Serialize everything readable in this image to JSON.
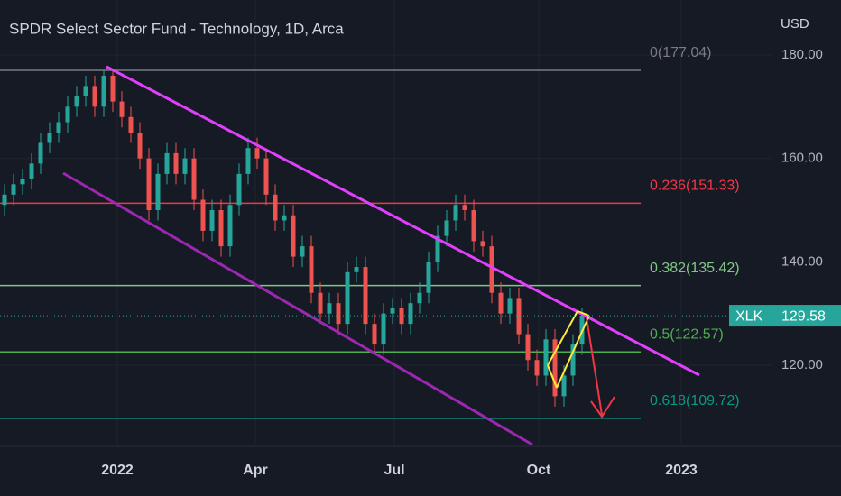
{
  "chart_data": {
    "type": "candlestick",
    "title": "SPDR Select Sector Fund - Technology, 1D, Arca",
    "currency": "USD",
    "symbol": "XLK",
    "last_price": 129.58,
    "up_color": "#26a69a",
    "down_color": "#ef5350",
    "open": [
      151,
      153,
      155,
      156,
      159,
      163,
      165,
      167,
      170,
      172,
      174,
      170,
      176,
      171,
      168,
      165,
      160,
      150,
      157,
      161,
      157,
      160,
      152,
      146,
      150,
      143,
      151,
      157,
      162,
      160,
      153,
      148,
      149,
      141,
      143,
      134,
      130,
      132,
      128,
      138,
      139,
      128,
      124,
      130,
      131,
      128,
      132,
      134,
      140,
      145,
      148,
      151,
      150,
      144,
      143,
      134,
      130,
      133,
      126,
      121,
      118,
      125,
      114,
      118,
      124
    ],
    "high": [
      155,
      157,
      158,
      161,
      165,
      167,
      169,
      172,
      174,
      176,
      176,
      177,
      177,
      173,
      170,
      167,
      162,
      159,
      163,
      163,
      162,
      162,
      154,
      152,
      152,
      153,
      159,
      164,
      164,
      162,
      155,
      151,
      151,
      145,
      145,
      136,
      134,
      134,
      140,
      141,
      141,
      130,
      132,
      133,
      133,
      134,
      136,
      142,
      147,
      150,
      153,
      153,
      152,
      146,
      145,
      136,
      135,
      135,
      128,
      123,
      127,
      127,
      120,
      126,
      131
    ],
    "low": [
      149,
      151,
      153,
      154,
      157,
      161,
      163,
      165,
      168,
      170,
      168,
      168,
      169,
      166,
      163,
      158,
      148,
      148,
      155,
      155,
      155,
      150,
      144,
      144,
      141,
      141,
      149,
      155,
      158,
      151,
      146,
      146,
      139,
      139,
      132,
      128,
      128,
      126,
      126,
      136,
      126,
      122,
      122,
      128,
      126,
      126,
      130,
      132,
      138,
      143,
      146,
      148,
      142,
      141,
      132,
      128,
      128,
      124,
      119,
      116,
      116,
      112,
      112,
      116,
      122
    ],
    "close": [
      153,
      155,
      156,
      159,
      163,
      165,
      167,
      170,
      172,
      174,
      170,
      176,
      171,
      168,
      165,
      160,
      150,
      157,
      161,
      157,
      160,
      152,
      146,
      150,
      143,
      151,
      157,
      162,
      160,
      153,
      148,
      149,
      141,
      143,
      134,
      130,
      132,
      128,
      138,
      139,
      128,
      124,
      130,
      131,
      128,
      132,
      134,
      140,
      145,
      148,
      151,
      150,
      144,
      143,
      134,
      130,
      133,
      126,
      121,
      118,
      125,
      114,
      118,
      124,
      129.58
    ],
    "xlim": [
      -0.5,
      85
    ],
    "xticks": [
      {
        "value": 12.5,
        "label": "2022"
      },
      {
        "value": 27.8,
        "label": "Apr"
      },
      {
        "value": 43.2,
        "label": "Jul"
      },
      {
        "value": 59.2,
        "label": "Oct"
      },
      {
        "value": 75,
        "label": "2023"
      }
    ],
    "ylim": [
      104.3,
      190.64
    ],
    "yticks": [
      {
        "value": 120,
        "label": "120.00"
      },
      {
        "value": 140,
        "label": "140.00"
      },
      {
        "value": 160,
        "label": "160.00"
      },
      {
        "value": 180,
        "label": "180.00"
      }
    ],
    "fib_levels": [
      {
        "label": "0(177.04)",
        "value": 177.04,
        "color": "#787b86"
      },
      {
        "label": "0.236(151.33)",
        "value": 151.33,
        "color": "#f23645"
      },
      {
        "label": "0.382(135.42)",
        "value": 135.42,
        "color": "#81c784"
      },
      {
        "label": "0.5(122.57)",
        "value": 122.57,
        "color": "#4caf50"
      },
      {
        "label": "0.618(109.72)",
        "value": 109.72,
        "color": "#089981"
      }
    ]
  }
}
